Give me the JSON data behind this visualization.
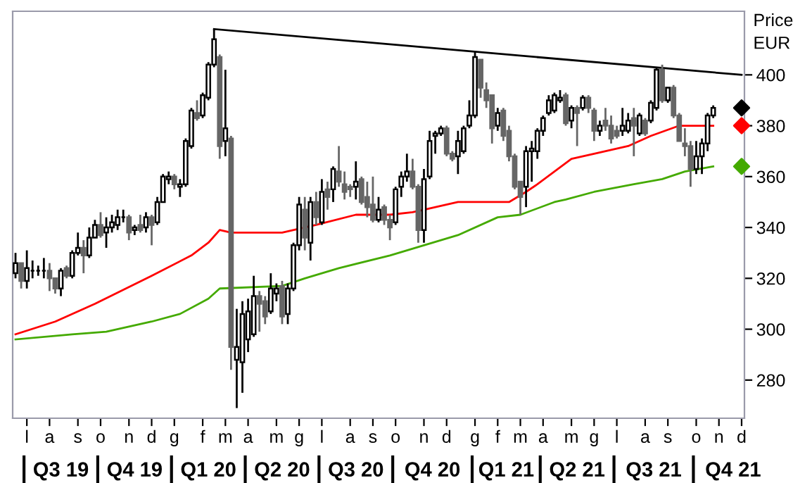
{
  "chart_data": {
    "type": "candlestick",
    "ylabel": "Price\nEUR",
    "colors": [
      "#ffffff",
      "#666666",
      "#ffffff",
      "#000000",
      "#000000",
      "#000000",
      "#666666",
      "#666666",
      "#ffffff",
      "#666666",
      "#ffffff",
      "#ffffff",
      "#666666",
      "#ffffff",
      "#ffffff",
      "#666666",
      "#ffffff",
      "#ffffff",
      "#ffffff",
      "#000000",
      "#666666",
      "#ffffff",
      "#666666",
      "#ffffff",
      "#666666",
      "#ffffff",
      "#ffffff",
      "#ffffff",
      "#666666",
      "#ffffff",
      "#ffffff",
      "#ffffff",
      "#666666",
      "#ffffff",
      "#ffffff",
      "#ffffff",
      "#666666",
      "#ffffff",
      "#666666",
      "#ffffff",
      "#ffffff",
      "#ffffff",
      "#ffffff",
      "#666666",
      "#666666",
      "#ffffff",
      "#ffffff",
      "#666666",
      "#ffffff",
      "#ffffff",
      "#ffffff",
      "#666666",
      "#ffffff",
      "#666666",
      "#ffffff",
      "#666666",
      "#ffffff",
      "#666666",
      "#666666",
      "#666666",
      "#ffffff",
      "#666666",
      "#666666",
      "#666666",
      "#ffffff",
      "#666666",
      "#666666",
      "#ffffff",
      "#ffffff",
      "#ffffff",
      "#666666",
      "#666666",
      "#ffffff",
      "#ffffff",
      "#ffffff",
      "#ffffff",
      "#666666",
      "#666666",
      "#ffffff",
      "#ffffff",
      "#ffffff",
      "#ffffff",
      "#666666",
      "#666666",
      "#666666",
      "#ffffff",
      "#666666",
      "#666666",
      "#666666",
      "#666666",
      "#ffffff",
      "#ffffff",
      "#ffffff",
      "#ffffff",
      "#ffffff",
      "#ffffff",
      "#ffffff",
      "#666666",
      "#ffffff",
      "#666666",
      "#ffffff",
      "#666666",
      "#666666",
      "#ffffff",
      "#666666",
      "#666666",
      "#666666",
      "#ffffff",
      "#ffffff",
      "#666666",
      "#ffffff",
      "#666666",
      "#ffffff",
      "#ffffff",
      "#666666",
      "#ffffff",
      "#666666",
      "#666666",
      "#666666",
      "#666666",
      "#ffffff",
      "#ffffff",
      "#ffffff",
      "#ffffff",
      null,
      null,
      null,
      null,
      null
    ],
    "ylim": [
      265,
      425
    ],
    "yticks": [
      280,
      300,
      320,
      340,
      360,
      380,
      400
    ],
    "categories": [
      null,
      null,
      "l",
      null,
      null,
      null,
      "a",
      null,
      null,
      null,
      null,
      "s",
      null,
      null,
      null,
      "o",
      null,
      null,
      null,
      null,
      "n",
      null,
      null,
      null,
      "d",
      null,
      null,
      null,
      "g",
      null,
      null,
      null,
      null,
      "f",
      null,
      null,
      null,
      "m",
      null,
      null,
      null,
      "a",
      null,
      null,
      null,
      null,
      "m",
      null,
      null,
      null,
      "g",
      null,
      null,
      null,
      "l",
      null,
      null,
      null,
      null,
      "a",
      null,
      null,
      null,
      "s",
      null,
      null,
      null,
      "o",
      null,
      null,
      null,
      null,
      "n",
      null,
      null,
      null,
      "d",
      null,
      null,
      null,
      null,
      "g",
      null,
      null,
      null,
      "f",
      null,
      null,
      null,
      "m",
      null,
      null,
      null,
      "a",
      null,
      null,
      null,
      null,
      "m",
      null,
      null,
      null,
      "g",
      null,
      null,
      null,
      "l",
      null,
      null,
      null,
      null,
      "a",
      null,
      null,
      null,
      "s",
      null,
      null,
      null,
      null,
      "o",
      null,
      null,
      null,
      "n",
      null,
      null,
      null,
      "d"
    ],
    "annotations": [
      "Q3 19",
      "Q4 19",
      "Q1 20",
      "Q2 20",
      "Q3 20",
      "Q4 20",
      "Q1 21",
      "Q2 21",
      "Q3 21",
      "Q4 21"
    ],
    "ohlc": [
      [
        322,
        330,
        320,
        326
      ],
      [
        326,
        326,
        316,
        319
      ],
      [
        319,
        331,
        316,
        324
      ],
      [
        323,
        327,
        320,
        323
      ],
      [
        323,
        325,
        321,
        323
      ],
      [
        323,
        328,
        320,
        323
      ],
      [
        323,
        326,
        315,
        320
      ],
      [
        320,
        320,
        314,
        316
      ],
      [
        316,
        324,
        313,
        323
      ],
      [
        324,
        325,
        320,
        321
      ],
      [
        321,
        331,
        320,
        330
      ],
      [
        330,
        338,
        329,
        332
      ],
      [
        332,
        335,
        322,
        329
      ],
      [
        329,
        340,
        328,
        336
      ],
      [
        336,
        343,
        336,
        341
      ],
      [
        341,
        346,
        336,
        337
      ],
      [
        338,
        344,
        332,
        340
      ],
      [
        340,
        345,
        338,
        342
      ],
      [
        341,
        347,
        339,
        344
      ],
      [
        344,
        347,
        342,
        344
      ],
      [
        344,
        345,
        335,
        338
      ],
      [
        339,
        341,
        337,
        340
      ],
      [
        341,
        345,
        338,
        339
      ],
      [
        340,
        346,
        338,
        344
      ],
      [
        344,
        345,
        333,
        341
      ],
      [
        342,
        352,
        341,
        350
      ],
      [
        350,
        361,
        350,
        360
      ],
      [
        359,
        362,
        357,
        360
      ],
      [
        360,
        361,
        355,
        357
      ],
      [
        356,
        359,
        352,
        357
      ],
      [
        357,
        375,
        356,
        374
      ],
      [
        372,
        387,
        371,
        386
      ],
      [
        385,
        390,
        382,
        383
      ],
      [
        384,
        393,
        383,
        392
      ],
      [
        391,
        405,
        390,
        404
      ],
      [
        404,
        418,
        403,
        414
      ],
      [
        407,
        408,
        367,
        372
      ],
      [
        374,
        402,
        368,
        379
      ],
      [
        375,
        376,
        284,
        293
      ],
      [
        288,
        308,
        269,
        293
      ],
      [
        287,
        311,
        275,
        306
      ],
      [
        296,
        312,
        291,
        307
      ],
      [
        298,
        321,
        297,
        313
      ],
      [
        313,
        315,
        299,
        310
      ],
      [
        311,
        313,
        302,
        305
      ],
      [
        307,
        322,
        306,
        316
      ],
      [
        314,
        318,
        311,
        316
      ],
      [
        317,
        319,
        302,
        305
      ],
      [
        306,
        318,
        302,
        316
      ],
      [
        316,
        334,
        315,
        333
      ],
      [
        333,
        352,
        331,
        349
      ],
      [
        347,
        352,
        331,
        336
      ],
      [
        334,
        352,
        327,
        350
      ],
      [
        350,
        354,
        341,
        344
      ],
      [
        342,
        359,
        341,
        354
      ],
      [
        355,
        358,
        347,
        352
      ],
      [
        355,
        364,
        350,
        363
      ],
      [
        362,
        372,
        356,
        358
      ],
      [
        357,
        362,
        351,
        354
      ],
      [
        356,
        357,
        352,
        355
      ],
      [
        356,
        366,
        351,
        358
      ],
      [
        359,
        360,
        349,
        350
      ],
      [
        352,
        358,
        344,
        348
      ],
      [
        349,
        360,
        342,
        343
      ],
      [
        343,
        352,
        342,
        347
      ],
      [
        348,
        349,
        341,
        343
      ],
      [
        343,
        345,
        335,
        340
      ],
      [
        342,
        356,
        341,
        355
      ],
      [
        356,
        362,
        352,
        360
      ],
      [
        360,
        369,
        358,
        362
      ],
      [
        362,
        367,
        355,
        356
      ],
      [
        356,
        357,
        334,
        339
      ],
      [
        339,
        363,
        334,
        359
      ],
      [
        360,
        378,
        359,
        374
      ],
      [
        376,
        378,
        369,
        377
      ],
      [
        377,
        380,
        376,
        379
      ],
      [
        379,
        380,
        368,
        369
      ],
      [
        369,
        370,
        366,
        367
      ],
      [
        368,
        378,
        361,
        374
      ],
      [
        370,
        380,
        369,
        379
      ],
      [
        380,
        390,
        379,
        384
      ],
      [
        384,
        409,
        383,
        407
      ],
      [
        406,
        406,
        391,
        395
      ],
      [
        394,
        397,
        387,
        390
      ],
      [
        392,
        392,
        373,
        379
      ],
      [
        380,
        387,
        378,
        385
      ],
      [
        386,
        387,
        374,
        376
      ],
      [
        378,
        380,
        366,
        368
      ],
      [
        368,
        369,
        355,
        356
      ],
      [
        358,
        358,
        345,
        352
      ],
      [
        356,
        372,
        348,
        370
      ],
      [
        370,
        374,
        358,
        371
      ],
      [
        370,
        379,
        367,
        378
      ],
      [
        378,
        384,
        376,
        383
      ],
      [
        385,
        392,
        384,
        390
      ],
      [
        386,
        393,
        385,
        392
      ],
      [
        390,
        394,
        389,
        391
      ],
      [
        392,
        393,
        380,
        381
      ],
      [
        382,
        388,
        379,
        387
      ],
      [
        387,
        388,
        372,
        385
      ],
      [
        387,
        392,
        386,
        391
      ],
      [
        391,
        392,
        385,
        387
      ],
      [
        386,
        387,
        374,
        378
      ],
      [
        378,
        382,
        376,
        380
      ],
      [
        382,
        387,
        378,
        380
      ],
      [
        380,
        384,
        373,
        375
      ],
      [
        378,
        380,
        375,
        376
      ],
      [
        378,
        387,
        376,
        380
      ],
      [
        378,
        385,
        377,
        382
      ],
      [
        383,
        387,
        368,
        380
      ],
      [
        377,
        385,
        376,
        384
      ],
      [
        382,
        383,
        376,
        377
      ],
      [
        382,
        390,
        381,
        389
      ],
      [
        387,
        403,
        386,
        402
      ],
      [
        402,
        404,
        389,
        390
      ],
      [
        390,
        395,
        389,
        395
      ],
      [
        395,
        396,
        383,
        384
      ],
      [
        384,
        385,
        374,
        374
      ],
      [
        373,
        379,
        368,
        372
      ],
      [
        372,
        374,
        356,
        363
      ],
      [
        363,
        374,
        361,
        368
      ],
      [
        368,
        375,
        361,
        373
      ],
      [
        373,
        385,
        370,
        384
      ],
      [
        384,
        388,
        383,
        387
      ],
      null,
      null,
      null,
      null,
      null
    ],
    "series": [
      {
        "type": "line",
        "color": "#ff0000",
        "values": [
          298,
          null,
          null,
          null,
          null,
          null,
          null,
          303,
          null,
          null,
          null,
          null,
          null,
          null,
          310,
          null,
          null,
          null,
          null,
          null,
          null,
          null,
          null,
          null,
          321,
          null,
          null,
          null,
          null,
          null,
          null,
          329,
          null,
          null,
          334,
          null,
          339,
          null,
          338,
          null,
          null,
          null,
          null,
          338,
          null,
          null,
          null,
          338,
          null,
          null,
          null,
          null,
          null,
          341,
          null,
          null,
          null,
          null,
          null,
          null,
          345,
          null,
          null,
          null,
          null,
          null,
          345,
          null,
          null,
          null,
          346,
          null,
          347,
          null,
          null,
          null,
          null,
          null,
          350,
          null,
          null,
          null,
          null,
          null,
          350,
          null,
          350,
          350,
          null,
          null,
          354,
          null,
          357,
          null,
          null,
          362,
          null,
          null,
          367,
          null,
          null,
          null,
          369,
          null,
          null,
          null,
          null,
          null,
          372,
          null,
          null,
          null,
          376,
          null,
          null,
          null,
          null,
          380,
          null,
          null,
          380,
          null,
          null,
          380,
          null,
          null,
          null,
          null,
          null
        ]
      },
      {
        "type": "line",
        "color": "#44aa00",
        "values": [
          296,
          null,
          null,
          null,
          null,
          null,
          null,
          null,
          null,
          null,
          298,
          null,
          null,
          null,
          null,
          null,
          299,
          null,
          null,
          null,
          null,
          null,
          null,
          null,
          303,
          null,
          null,
          null,
          null,
          306,
          null,
          null,
          null,
          null,
          312,
          null,
          316,
          null,
          null,
          null,
          null,
          null,
          null,
          null,
          null,
          null,
          null,
          317,
          null,
          null,
          null,
          320,
          null,
          null,
          null,
          null,
          null,
          324,
          null,
          null,
          null,
          null,
          null,
          null,
          null,
          null,
          329,
          null,
          null,
          null,
          null,
          null,
          333,
          null,
          null,
          null,
          null,
          null,
          337,
          null,
          null,
          null,
          null,
          null,
          null,
          344,
          null,
          null,
          null,
          345,
          null,
          null,
          null,
          null,
          null,
          350,
          null,
          351,
          null,
          null,
          null,
          null,
          354,
          null,
          null,
          null,
          null,
          null,
          null,
          357,
          null,
          null,
          null,
          null,
          359,
          null,
          null,
          null,
          362,
          null,
          null,
          null,
          null,
          364,
          null,
          null,
          null,
          null,
          null
        ]
      },
      {
        "type": "scatter",
        "marker": "diamond",
        "color": "#000000",
        "values": [
          null,
          null,
          null,
          null,
          null,
          null,
          null,
          null,
          null,
          null,
          null,
          null,
          null,
          null,
          null,
          null,
          null,
          null,
          null,
          null,
          null,
          null,
          null,
          null,
          null,
          null,
          null,
          null,
          null,
          null,
          null,
          null,
          null,
          null,
          null,
          null,
          null,
          null,
          null,
          null,
          null,
          null,
          null,
          null,
          null,
          null,
          null,
          null,
          null,
          null,
          null,
          null,
          null,
          null,
          null,
          null,
          null,
          null,
          null,
          null,
          null,
          null,
          null,
          null,
          null,
          null,
          null,
          null,
          null,
          null,
          null,
          null,
          null,
          null,
          null,
          null,
          null,
          null,
          null,
          null,
          null,
          null,
          null,
          null,
          null,
          null,
          null,
          null,
          null,
          null,
          null,
          null,
          null,
          null,
          null,
          null,
          null,
          null,
          null,
          null,
          null,
          null,
          null,
          null,
          null,
          null,
          null,
          null,
          null,
          null,
          null,
          null,
          null,
          null,
          null,
          null,
          null,
          null,
          null,
          null,
          null,
          null,
          null,
          null,
          null,
          null,
          null,
          null,
          387
        ]
      },
      {
        "type": "scatter",
        "marker": "diamond",
        "color": "#ff0000",
        "values": [
          null,
          null,
          null,
          null,
          null,
          null,
          null,
          null,
          null,
          null,
          null,
          null,
          null,
          null,
          null,
          null,
          null,
          null,
          null,
          null,
          null,
          null,
          null,
          null,
          null,
          null,
          null,
          null,
          null,
          null,
          null,
          null,
          null,
          null,
          null,
          null,
          null,
          null,
          null,
          null,
          null,
          null,
          null,
          null,
          null,
          null,
          null,
          null,
          null,
          null,
          null,
          null,
          null,
          null,
          null,
          null,
          null,
          null,
          null,
          null,
          null,
          null,
          null,
          null,
          null,
          null,
          null,
          null,
          null,
          null,
          null,
          null,
          null,
          null,
          null,
          null,
          null,
          null,
          null,
          null,
          null,
          null,
          null,
          null,
          null,
          null,
          null,
          null,
          null,
          null,
          null,
          null,
          null,
          null,
          null,
          null,
          null,
          null,
          null,
          null,
          null,
          null,
          null,
          null,
          null,
          null,
          null,
          null,
          null,
          null,
          null,
          null,
          null,
          null,
          null,
          null,
          null,
          null,
          null,
          null,
          null,
          null,
          null,
          null,
          null,
          null,
          null,
          null,
          380
        ]
      },
      {
        "type": "scatter",
        "marker": "diamond",
        "color": "#44aa00",
        "values": [
          null,
          null,
          null,
          null,
          null,
          null,
          null,
          null,
          null,
          null,
          null,
          null,
          null,
          null,
          null,
          null,
          null,
          null,
          null,
          null,
          null,
          null,
          null,
          null,
          null,
          null,
          null,
          null,
          null,
          null,
          null,
          null,
          null,
          null,
          null,
          null,
          null,
          null,
          null,
          null,
          null,
          null,
          null,
          null,
          null,
          null,
          null,
          null,
          null,
          null,
          null,
          null,
          null,
          null,
          null,
          null,
          null,
          null,
          null,
          null,
          null,
          null,
          null,
          null,
          null,
          null,
          null,
          null,
          null,
          null,
          null,
          null,
          null,
          null,
          null,
          null,
          null,
          null,
          null,
          null,
          null,
          null,
          null,
          null,
          null,
          null,
          null,
          null,
          null,
          null,
          null,
          null,
          null,
          null,
          null,
          null,
          null,
          null,
          null,
          null,
          null,
          null,
          null,
          null,
          null,
          null,
          null,
          null,
          null,
          null,
          null,
          null,
          null,
          null,
          null,
          null,
          null,
          null,
          null,
          null,
          null,
          null,
          null,
          null,
          null,
          null,
          null,
          null,
          364
        ]
      },
      {
        "type": "line",
        "color": "#000000",
        "values": [
          null,
          null,
          null,
          null,
          null,
          null,
          null,
          null,
          null,
          null,
          null,
          null,
          null,
          null,
          null,
          null,
          null,
          null,
          null,
          null,
          null,
          null,
          null,
          null,
          null,
          null,
          null,
          null,
          null,
          null,
          null,
          null,
          null,
          null,
          null,
          418,
          null,
          null,
          null,
          null,
          null,
          null,
          null,
          null,
          null,
          null,
          null,
          null,
          null,
          null,
          null,
          null,
          null,
          null,
          null,
          null,
          null,
          null,
          null,
          null,
          null,
          null,
          null,
          null,
          null,
          null,
          null,
          null,
          null,
          null,
          null,
          null,
          null,
          null,
          null,
          null,
          null,
          null,
          null,
          null,
          null,
          null,
          null,
          null,
          null,
          null,
          null,
          null,
          null,
          null,
          null,
          null,
          null,
          null,
          null,
          null,
          null,
          null,
          null,
          null,
          null,
          null,
          null,
          null,
          null,
          null,
          null,
          null,
          null,
          null,
          null,
          null,
          null,
          null,
          null,
          null,
          null,
          null,
          null,
          null,
          null,
          null,
          null,
          null,
          null,
          null,
          null,
          null,
          400
        ]
      }
    ]
  }
}
